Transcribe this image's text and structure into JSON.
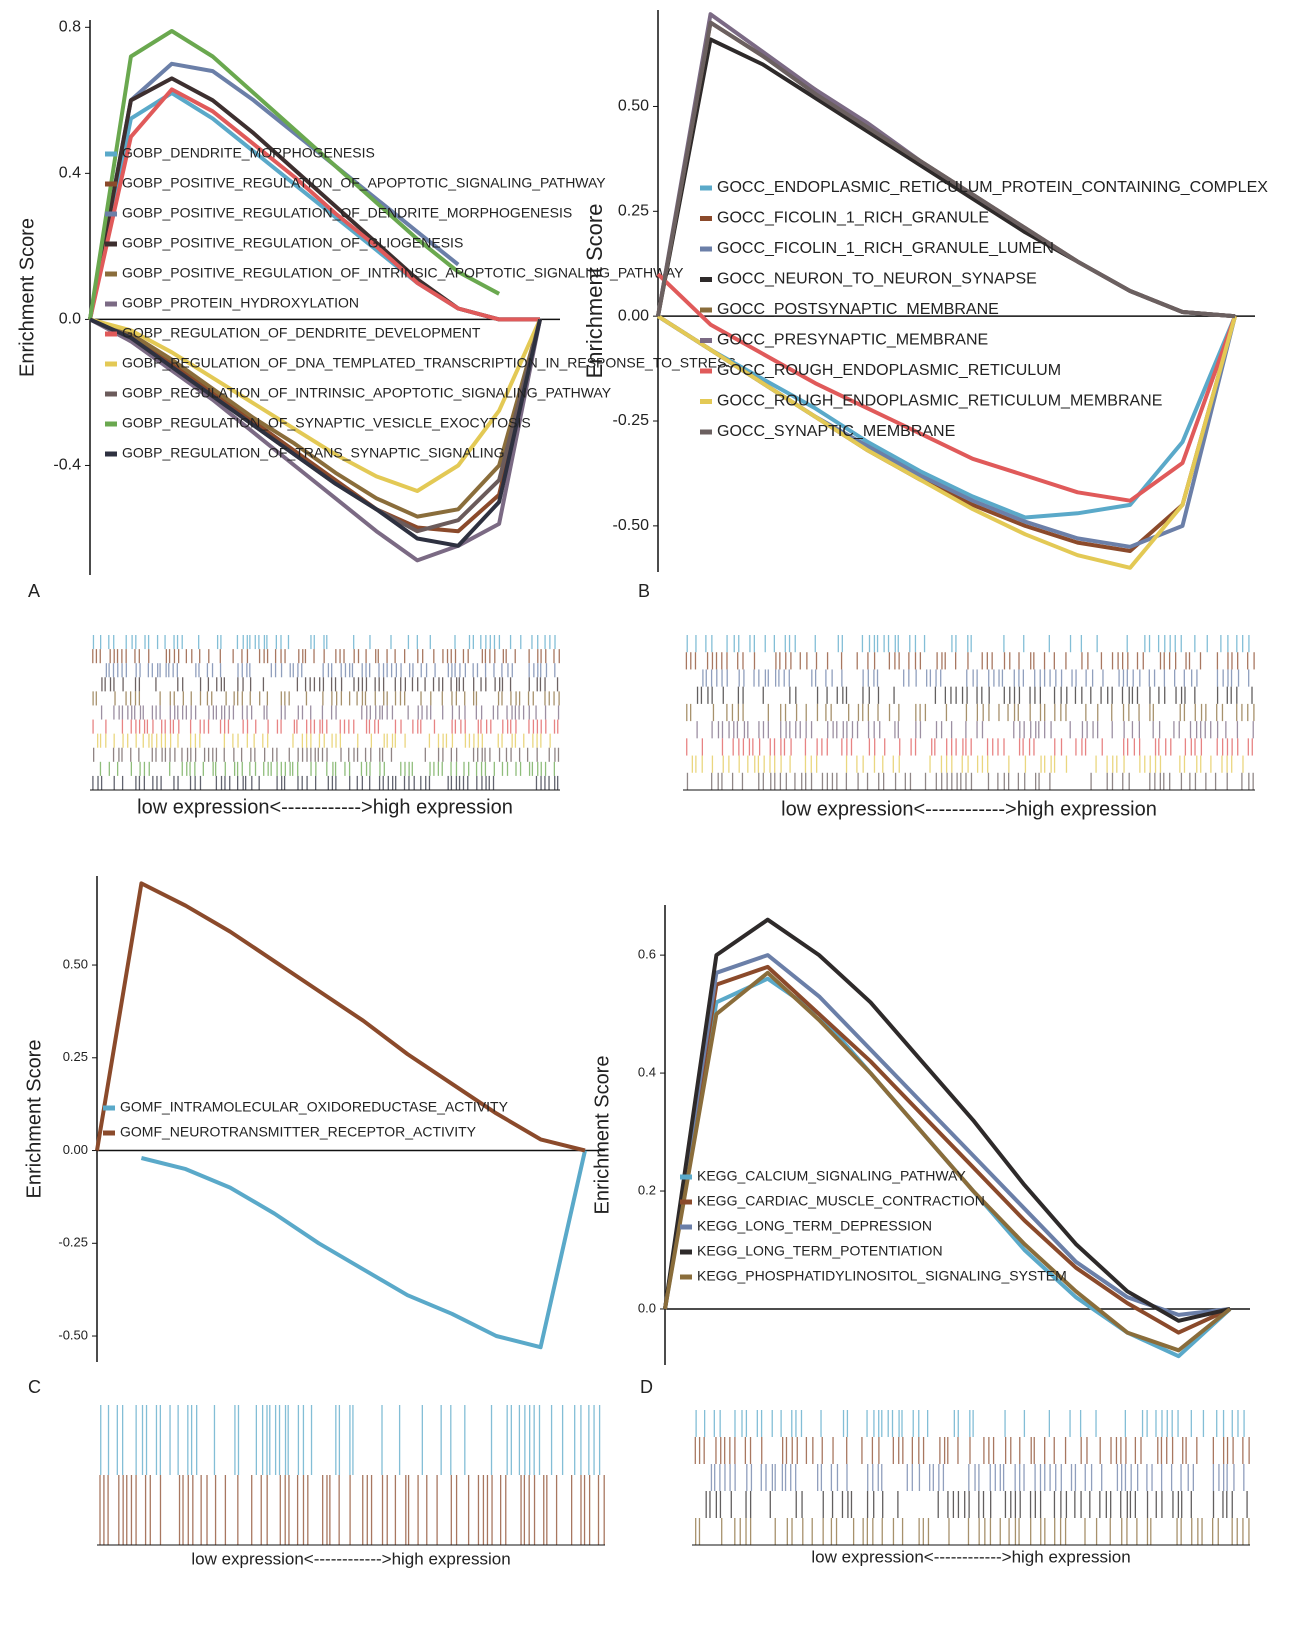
{
  "chart_data": [
    {
      "type": "line",
      "panel_label": "A",
      "ylabel": "Enrichment Score",
      "xlabel": "low expression<------------>high expression",
      "ylim": [
        -0.7,
        0.82
      ],
      "yticks": [
        -0.4,
        {
          "value": 0,
          "label": "0.0"
        },
        0.4,
        0.8
      ],
      "legend": "center left",
      "series": [
        {
          "name": "GOBP_DENDRITE_MORPHOGENESIS",
          "color": "#5aa9c9",
          "values": [
            0,
            0.55,
            0.62,
            0.55,
            0.46,
            0.37,
            0.28,
            0.19,
            0.1,
            0.03,
            0,
            0
          ]
        },
        {
          "name": "GOBP_POSITIVE_REGULATION_OF_APOPTOTIC_SIGNALING_PATHWAY",
          "color": "#8b4a2b",
          "values": [
            0,
            -0.05,
            -0.12,
            -0.2,
            -0.28,
            -0.36,
            -0.44,
            -0.52,
            -0.57,
            -0.58,
            -0.48,
            0
          ]
        },
        {
          "name": "GOBP_POSITIVE_REGULATION_OF_DENDRITE_MORPHOGENESIS",
          "color": "#6b7fa8",
          "values": [
            0,
            0.6,
            0.7,
            0.68,
            0.6,
            0.51,
            0.42,
            0.33,
            0.24,
            0.15,
            null,
            null
          ]
        },
        {
          "name": "GOBP_POSITIVE_REGULATION_OF_GLIOGENESIS",
          "color": "#3d2f2f",
          "values": [
            0,
            0.6,
            0.66,
            0.6,
            0.51,
            0.41,
            0.31,
            0.21,
            0.11,
            0.03,
            0,
            0
          ]
        },
        {
          "name": "GOBP_POSITIVE_REGULATION_OF_INTRINSIC_APOPTOTIC_SIGNALING_PATHWAY",
          "color": "#8a6d3b",
          "values": [
            0,
            -0.04,
            -0.11,
            -0.19,
            -0.27,
            -0.34,
            -0.42,
            -0.49,
            -0.54,
            -0.52,
            -0.4,
            0
          ]
        },
        {
          "name": "GOBP_PROTEIN_HYDROXYLATION",
          "color": "#7b6a84",
          "values": [
            0,
            -0.06,
            -0.14,
            -0.22,
            -0.31,
            -0.4,
            -0.49,
            -0.58,
            -0.66,
            -0.62,
            -0.56,
            0
          ]
        },
        {
          "name": "GOBP_REGULATION_OF_DENDRITE_DEVELOPMENT",
          "color": "#e05a5a",
          "values": [
            0,
            0.5,
            0.63,
            0.57,
            0.48,
            0.39,
            0.29,
            0.2,
            0.1,
            0.03,
            0,
            0
          ]
        },
        {
          "name": "GOBP_REGULATION_OF_DNA_TEMPLATED_TRANSCRIPTION_IN_RESPONSE_TO_STRESS",
          "color": "#e3c955",
          "values": [
            0,
            -0.03,
            -0.09,
            -0.16,
            -0.23,
            -0.3,
            -0.37,
            -0.43,
            -0.47,
            -0.4,
            -0.25,
            0
          ]
        },
        {
          "name": "GOBP_REGULATION_OF_INTRINSIC_APOPTOTIC_SIGNALING_PATHWAY",
          "color": "#6b5b5b",
          "values": [
            0,
            -0.05,
            -0.13,
            -0.21,
            -0.29,
            -0.37,
            -0.45,
            -0.52,
            -0.58,
            -0.55,
            -0.44,
            0
          ]
        },
        {
          "name": "GOBP_REGULATION_OF_SYNAPTIC_VESICLE_EXOCYTOSIS",
          "color": "#6aa84f",
          "values": [
            0,
            0.72,
            0.79,
            0.72,
            0.62,
            0.52,
            0.42,
            0.32,
            0.22,
            0.13,
            0.07,
            null
          ]
        },
        {
          "name": "GOBP_REGULATION_OF_TRANS_SYNAPTIC_SIGNALING",
          "color": "#2e3140",
          "values": [
            0,
            -0.05,
            -0.13,
            -0.21,
            -0.29,
            -0.37,
            -0.45,
            -0.52,
            -0.6,
            -0.62,
            -0.5,
            0
          ]
        }
      ]
    },
    {
      "type": "line",
      "panel_label": "B",
      "ylabel": "Enrichment Score",
      "xlabel": "low expression<------------>high expression",
      "ylim": [
        -0.61,
        0.73
      ],
      "yticks": [
        {
          "value": -0.5,
          "label": "-0.50"
        },
        -0.25,
        {
          "value": 0,
          "label": "0.00"
        },
        0.25,
        {
          "value": 0.5,
          "label": "0.50"
        }
      ],
      "legend": "center",
      "series": [
        {
          "name": "GOCC_ENDOPLASMIC_RETICULUM_PROTEIN_CONTAINING_COMPLEX",
          "color": "#5aa9c9",
          "values": [
            0,
            -0.08,
            -0.15,
            -0.22,
            -0.3,
            -0.37,
            -0.43,
            -0.48,
            -0.47,
            -0.45,
            -0.3,
            0
          ]
        },
        {
          "name": "GOCC_FICOLIN_1_RICH_GRANULE",
          "color": "#8b4a2b",
          "values": [
            0,
            -0.08,
            -0.16,
            -0.24,
            -0.32,
            -0.39,
            -0.45,
            -0.5,
            -0.54,
            -0.56,
            -0.45,
            0
          ]
        },
        {
          "name": "GOCC_FICOLIN_1_RICH_GRANULE_LUMEN",
          "color": "#6b7fa8",
          "values": [
            0,
            -0.08,
            -0.16,
            -0.24,
            -0.31,
            -0.38,
            -0.44,
            -0.49,
            -0.53,
            -0.55,
            -0.5,
            0
          ]
        },
        {
          "name": "GOCC_NEURON_TO_NEURON_SYNAPSE",
          "color": "#2e2a2a",
          "values": [
            0,
            0.66,
            0.6,
            0.52,
            0.44,
            0.36,
            0.28,
            0.2,
            0.13,
            0.06,
            0.01,
            0
          ]
        },
        {
          "name": "GOCC_POSTSYNAPTIC_MEMBRANE",
          "color": "#8a6d3b",
          "values": [
            0,
            0.7,
            0.62,
            0.54,
            0.45,
            0.37,
            0.29,
            0.21,
            0.13,
            0.06,
            0.01,
            0
          ]
        },
        {
          "name": "GOCC_PRESYNAPTIC_MEMBRANE",
          "color": "#7b6a84",
          "values": [
            0,
            0.72,
            0.63,
            0.54,
            0.46,
            0.37,
            0.29,
            0.21,
            0.13,
            0.06,
            0.01,
            0
          ]
        },
        {
          "name": "GOCC_ROUGH_ENDOPLASMIC_RETICULUM",
          "color": "#e05a5a",
          "values": [
            0.1,
            -0.02,
            -0.09,
            -0.16,
            -0.22,
            -0.28,
            -0.34,
            -0.38,
            -0.42,
            -0.44,
            -0.35,
            0
          ]
        },
        {
          "name": "GOCC_ROUGH_ENDOPLASMIC_RETICULUM_MEMBRANE",
          "color": "#e3c955",
          "values": [
            0,
            -0.08,
            -0.16,
            -0.24,
            -0.32,
            -0.39,
            -0.46,
            -0.52,
            -0.57,
            -0.6,
            -0.45,
            0
          ]
        },
        {
          "name": "GOCC_SYNAPTIC_MEMBRANE",
          "color": "#6b6060",
          "values": [
            0,
            0.7,
            0.62,
            0.53,
            0.45,
            0.37,
            0.29,
            0.21,
            0.13,
            0.06,
            0.01,
            0
          ]
        }
      ]
    },
    {
      "type": "line",
      "panel_label": "C",
      "ylabel": "Enrichment Score",
      "xlabel": "low expression<------------>high expression",
      "ylim": [
        -0.57,
        0.74
      ],
      "yticks": [
        {
          "value": -0.5,
          "label": "-0.50"
        },
        -0.25,
        {
          "value": 0,
          "label": "0.00"
        },
        0.25,
        {
          "value": 0.5,
          "label": "0.50"
        }
      ],
      "legend": "center left",
      "series": [
        {
          "name": "GOMF_INTRAMOLECULAR_OXIDOREDUCTASE_ACTIVITY",
          "color": "#5aa9c9",
          "values": [
            null,
            -0.02,
            -0.05,
            -0.1,
            -0.17,
            -0.25,
            -0.32,
            -0.39,
            -0.44,
            -0.5,
            -0.53,
            0
          ]
        },
        {
          "name": "GOMF_NEUROTRANSMITTER_RECEPTOR_ACTIVITY",
          "color": "#8b4a2b",
          "values": [
            0,
            0.72,
            0.66,
            0.59,
            0.51,
            0.43,
            0.35,
            0.26,
            0.18,
            0.1,
            0.03,
            0
          ]
        }
      ]
    },
    {
      "type": "line",
      "panel_label": "D",
      "ylabel": "Enrichment Score",
      "xlabel": "low expression<------------>high expression",
      "ylim": [
        -0.095,
        0.685
      ],
      "yticks": [
        {
          "value": 0,
          "label": "0.0"
        },
        0.2,
        0.4,
        0.6
      ],
      "legend": "lower left",
      "series": [
        {
          "name": "KEGG_CALCIUM_SIGNALING_PATHWAY",
          "color": "#5aa9c9",
          "values": [
            0,
            0.52,
            0.56,
            0.5,
            0.4,
            0.3,
            0.2,
            0.1,
            0.02,
            -0.04,
            -0.08,
            0
          ]
        },
        {
          "name": "KEGG_CARDIAC_MUSCLE_CONTRACTION",
          "color": "#8b4a2b",
          "values": [
            0,
            0.55,
            0.58,
            0.5,
            0.42,
            0.33,
            0.24,
            0.15,
            0.07,
            0.01,
            -0.04,
            0
          ]
        },
        {
          "name": "KEGG_LONG_TERM_DEPRESSION",
          "color": "#6b7fa8",
          "values": [
            0,
            0.57,
            0.6,
            0.53,
            0.44,
            0.35,
            0.26,
            0.17,
            0.08,
            0.02,
            -0.01,
            0
          ]
        },
        {
          "name": "KEGG_LONG_TERM_POTENTIATION",
          "color": "#2e2a2a",
          "values": [
            0,
            0.6,
            0.66,
            0.6,
            0.52,
            0.42,
            0.32,
            0.21,
            0.11,
            0.03,
            -0.02,
            0
          ]
        },
        {
          "name": "KEGG_PHOSPHATIDYLINOSITOL_SIGNALING_SYSTEM",
          "color": "#8a6d3b",
          "values": [
            0,
            0.5,
            0.57,
            0.49,
            0.4,
            0.3,
            0.2,
            0.11,
            0.03,
            -0.04,
            -0.07,
            0
          ]
        }
      ]
    }
  ]
}
